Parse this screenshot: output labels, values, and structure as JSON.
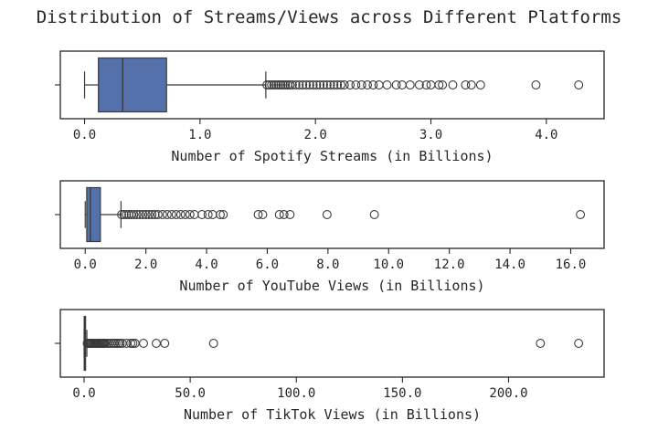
{
  "chart_data": [
    {
      "type": "box",
      "title": "Distribution of Streams/Views across Different Platforms",
      "xlabel": "Number of Spotify Streams (in Billions)",
      "xlim": [
        -0.21,
        4.5
      ],
      "xticks": [
        0.0,
        1.0,
        2.0,
        3.0,
        4.0
      ],
      "xtick_labels": [
        "0.0",
        "1.0",
        "2.0",
        "3.0",
        "4.0"
      ],
      "color": "#5471ab",
      "box": {
        "whisker_low": 0.0,
        "q1": 0.12,
        "median": 0.33,
        "q3": 0.71,
        "whisker_high": 1.57
      },
      "outliers": [
        1.58,
        1.6,
        1.62,
        1.64,
        1.66,
        1.68,
        1.7,
        1.72,
        1.74,
        1.76,
        1.78,
        1.8,
        1.83,
        1.86,
        1.89,
        1.92,
        1.95,
        1.98,
        2.01,
        2.04,
        2.07,
        2.1,
        2.13,
        2.16,
        2.19,
        2.22,
        2.25,
        2.3,
        2.35,
        2.4,
        2.45,
        2.5,
        2.55,
        2.62,
        2.7,
        2.75,
        2.82,
        2.9,
        2.96,
        3.0,
        3.07,
        3.1,
        3.19,
        3.3,
        3.35,
        3.43,
        3.91,
        4.28
      ]
    },
    {
      "type": "box",
      "xlabel": "Number of YouTube Views (in Billions)",
      "xlim": [
        -0.82,
        17.1
      ],
      "xticks": [
        0,
        2,
        4,
        6,
        8,
        10,
        12,
        14,
        16
      ],
      "xtick_labels": [
        "0.0",
        "2.0",
        "4.0",
        "6.0",
        "8.0",
        "10.0",
        "12.0",
        "14.0",
        "16.0"
      ],
      "color": "#5471ab",
      "box": {
        "whisker_low": 0.0,
        "q1": 0.05,
        "median": 0.17,
        "q3": 0.5,
        "whisker_high": 1.18
      },
      "outliers": [
        1.2,
        1.28,
        1.36,
        1.44,
        1.52,
        1.6,
        1.7,
        1.8,
        1.9,
        2.0,
        2.1,
        2.2,
        2.3,
        2.4,
        2.55,
        2.7,
        2.85,
        3.0,
        3.15,
        3.3,
        3.45,
        3.6,
        3.85,
        4.05,
        4.2,
        4.45,
        4.55,
        5.7,
        5.85,
        6.4,
        6.55,
        6.75,
        7.97,
        9.53,
        16.32
      ]
    },
    {
      "type": "box",
      "xlabel": "Number of TikTok Views (in Billions)",
      "xlim": [
        -11.2,
        245.0
      ],
      "xticks": [
        0,
        50,
        100,
        150,
        200
      ],
      "xtick_labels": [
        "0.0",
        "50.0",
        "100.0",
        "150.0",
        "200.0"
      ],
      "color": "#5471ab",
      "box": {
        "whisker_low": 0.0,
        "q1": 0.05,
        "median": 0.2,
        "q3": 0.5,
        "whisker_high": 1.3
      },
      "outliers": [
        1.5,
        2,
        2.5,
        3,
        3.5,
        4,
        4.5,
        5,
        5.5,
        6,
        6.5,
        7,
        7.5,
        8,
        8.5,
        9,
        9.5,
        10,
        11,
        12,
        13,
        14,
        15,
        16,
        17,
        18,
        20,
        22,
        23,
        24,
        28,
        34,
        38,
        61,
        215,
        233
      ]
    }
  ]
}
